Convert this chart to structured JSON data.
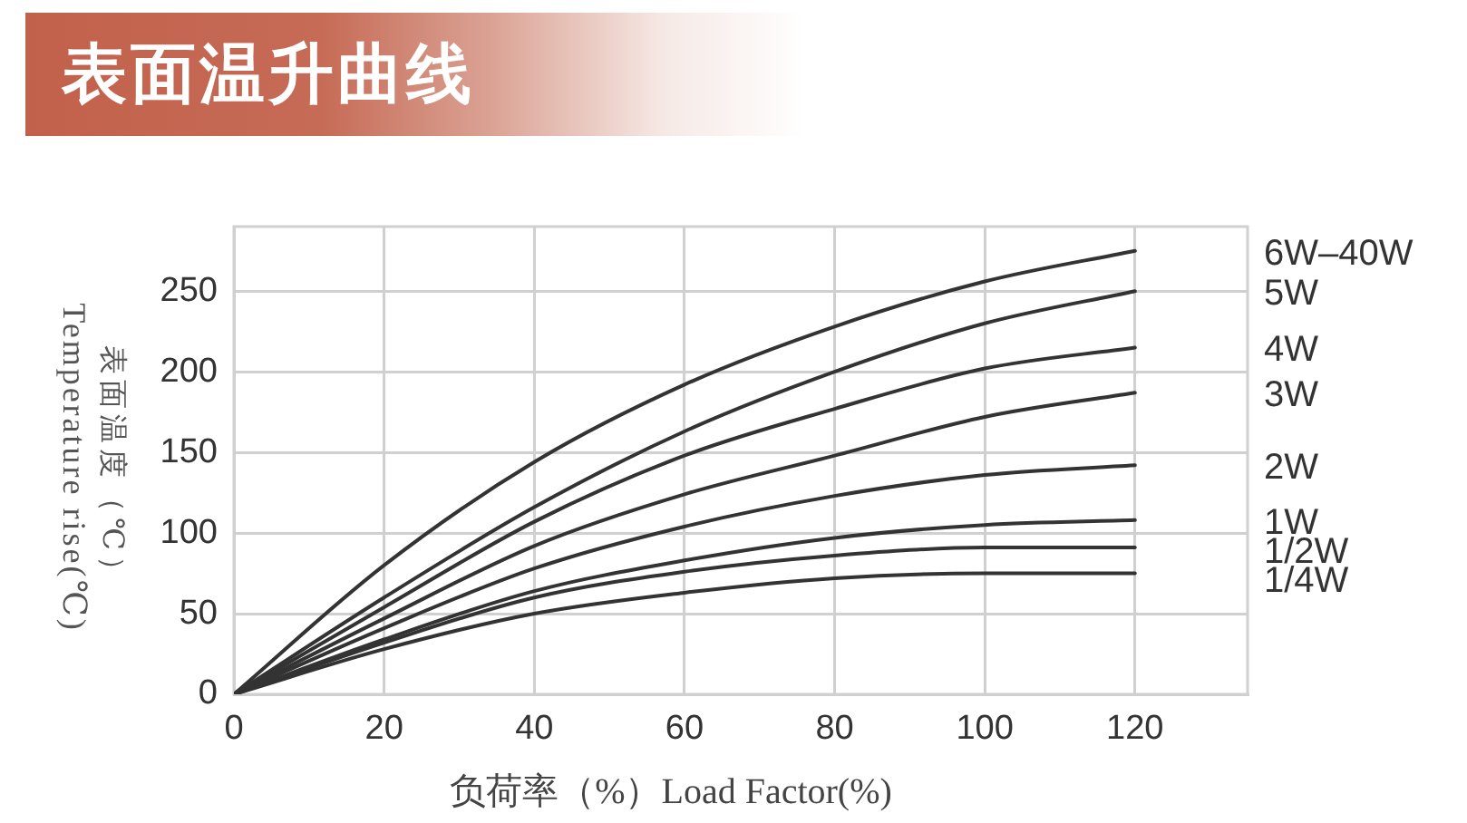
{
  "chart_data": {
    "type": "line",
    "title": "表面温升曲线",
    "xlabel": "负荷率（%）Load Factor(%)",
    "ylabel": "表面温度（℃）\nTemperature rise(℃)",
    "x": [
      0,
      20,
      40,
      60,
      80,
      100,
      120
    ],
    "series": [
      {
        "name": "6W–40W",
        "color": "#333333",
        "values": [
          0,
          80,
          144,
          192,
          228,
          256,
          275
        ]
      },
      {
        "name": "5W",
        "color": "#333333",
        "values": [
          0,
          60,
          116,
          163,
          200,
          230,
          250
        ]
      },
      {
        "name": "4W",
        "color": "#333333",
        "values": [
          0,
          54,
          107,
          148,
          177,
          202,
          215
        ]
      },
      {
        "name": "3W",
        "color": "#333333",
        "values": [
          0,
          47,
          92,
          124,
          148,
          172,
          187
        ]
      },
      {
        "name": "2W",
        "color": "#333333",
        "values": [
          0,
          41,
          78,
          104,
          123,
          136,
          142
        ]
      },
      {
        "name": "1W",
        "color": "#333333",
        "values": [
          0,
          34,
          64,
          83,
          97,
          105,
          108
        ]
      },
      {
        "name": "1/2W",
        "color": "#333333",
        "values": [
          0,
          32,
          60,
          76,
          86,
          91,
          91
        ]
      },
      {
        "name": "1/4W",
        "color": "#333333",
        "values": [
          0,
          28,
          50,
          63,
          72,
          75,
          75
        ]
      }
    ],
    "xlim": [
      0,
      135
    ],
    "xticks": [
      0,
      20,
      40,
      60,
      80,
      100,
      120
    ],
    "ylim": [
      0,
      290
    ],
    "yticks": [
      0,
      50,
      100,
      150,
      200,
      250
    ],
    "grid": true,
    "legend": false,
    "line_style": "solid"
  }
}
